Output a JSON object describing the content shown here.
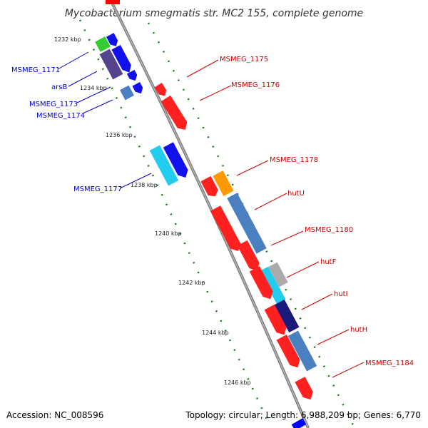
{
  "title": "Mycobacterium smegmatis str. MC2 155, complete genome",
  "footer": {
    "accession": "Accession: NC_008596",
    "summary": "Topology: circular; Length: 6,988,209 bp; Genes: 6,770"
  },
  "ticks": [
    "1232 kbp",
    "1234 kbp",
    "1236 kbp",
    "1238 kbp",
    "1240 kbp",
    "1242 kbp",
    "1244 kbp",
    "1246 kbp"
  ],
  "genes_left": [
    "MSMEG_1171",
    "arsB",
    "MSMEG_1173",
    "MSMEG_1174",
    "MSMEG_1177"
  ],
  "genes_right": [
    "MSMEG_1175",
    "MSMEG_1176",
    "MSMEG_1178",
    "hutU",
    "MSMEG_1180",
    "hutF",
    "hutI",
    "hutH",
    "MSMEG_1184"
  ],
  "colors": {
    "forward_gene": "#ff0000",
    "reverse_gene": "#0000ff",
    "left_label": "#0000cc",
    "right_label": "#cc0000",
    "backbone": "#888888",
    "gc_dots": "#1a7a1a"
  }
}
